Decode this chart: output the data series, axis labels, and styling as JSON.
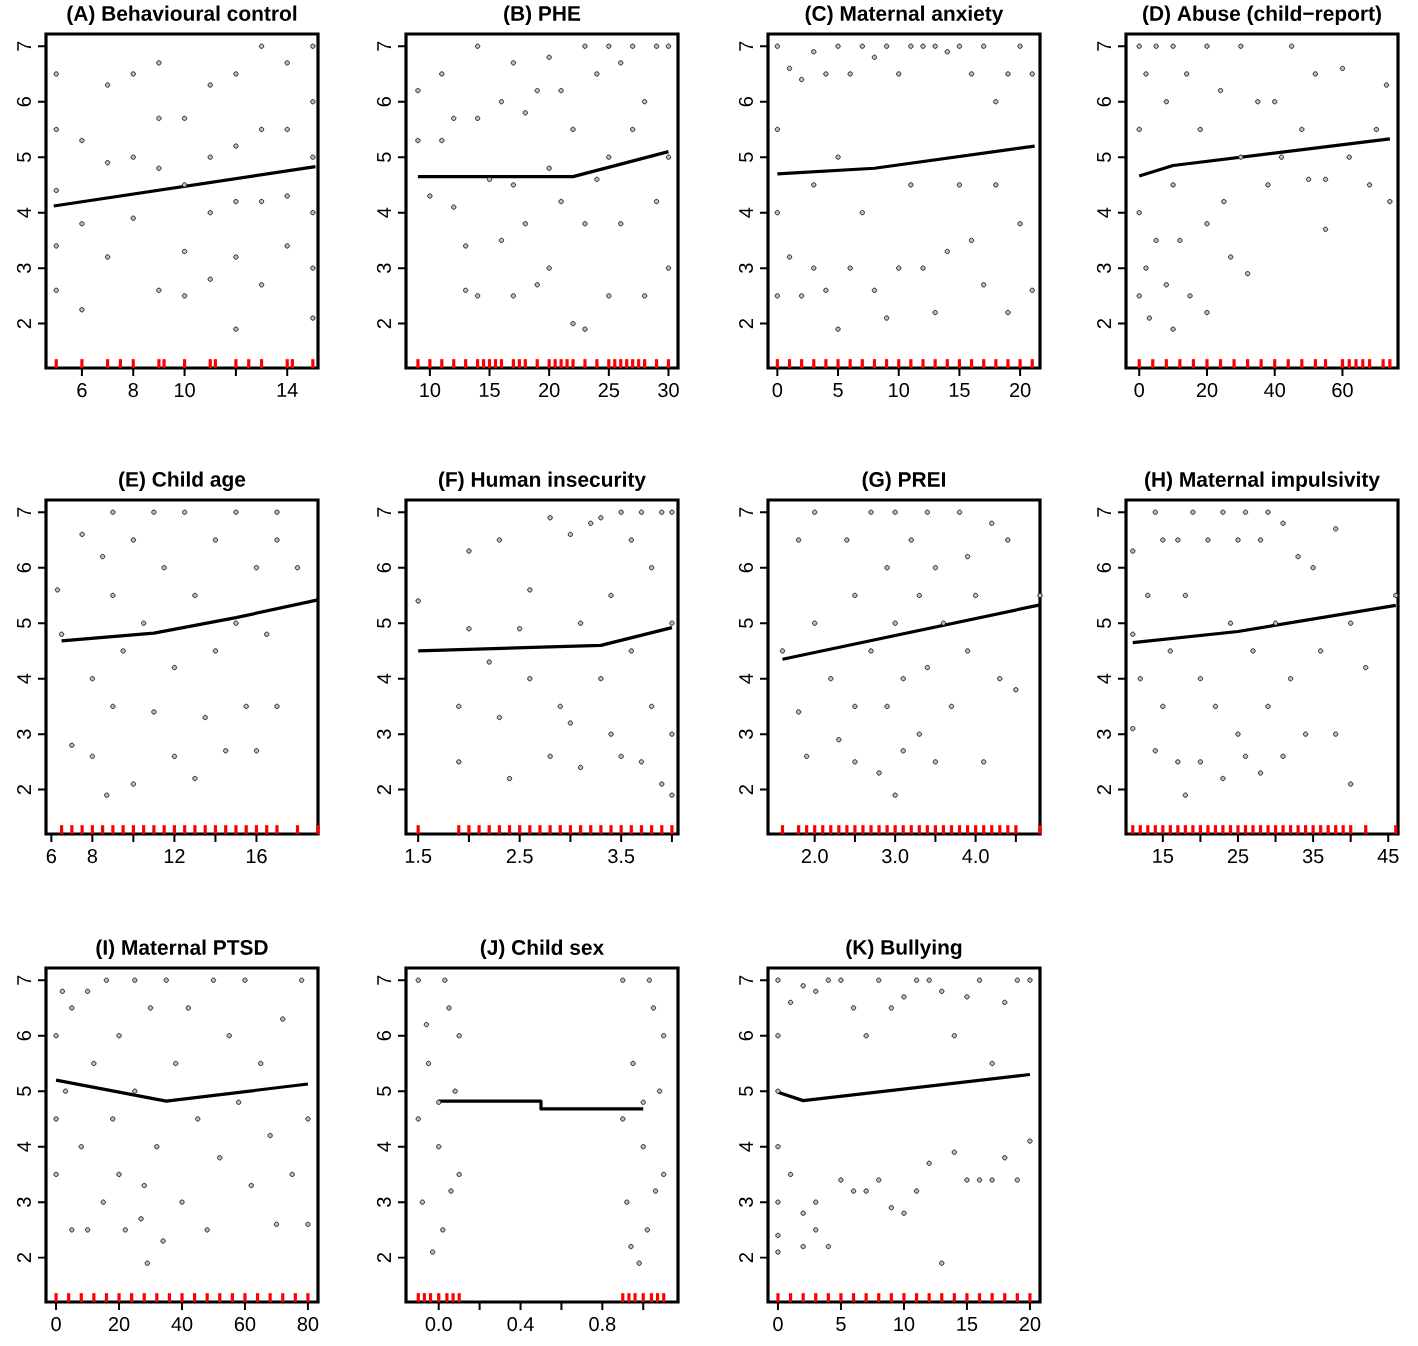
{
  "chart_data": [
    {
      "type": "scatter",
      "title": "(A) Behavioural control",
      "xlim": [
        4.6,
        15.2
      ],
      "xticks": [
        6,
        8,
        10,
        {
          "value": 12,
          "label": null
        },
        14
      ],
      "ylim": [
        1.2,
        7.22
      ],
      "yticks": [
        2,
        3,
        4,
        5,
        6,
        7
      ],
      "series": [
        {
          "type": "scatter",
          "marker": "circle",
          "color": "#bebebe",
          "x": [
            5,
            5,
            5,
            5,
            5,
            6,
            6,
            6,
            7,
            7,
            7,
            8,
            8,
            8,
            9,
            9,
            9,
            9,
            10,
            10,
            10,
            10,
            11,
            11,
            11,
            11,
            12,
            12,
            12,
            12,
            12,
            13,
            13,
            13,
            13,
            14,
            14,
            14,
            14,
            15,
            15,
            15,
            15,
            15,
            15
          ],
          "values": [
            6.5,
            5.5,
            4.4,
            3.4,
            2.6,
            5.3,
            3.8,
            2.25,
            6.3,
            4.9,
            3.2,
            6.5,
            5.0,
            3.9,
            6.7,
            5.7,
            4.8,
            2.6,
            5.7,
            4.5,
            3.3,
            2.5,
            6.3,
            5.0,
            4.0,
            2.8,
            6.5,
            5.2,
            4.2,
            3.2,
            1.9,
            7.0,
            5.5,
            4.2,
            2.7,
            6.7,
            5.5,
            4.3,
            3.4,
            7.0,
            6.0,
            5.0,
            4.0,
            3.0,
            2.1
          ]
        },
        {
          "type": "line",
          "marker": "none",
          "color": "#000000",
          "x": [
            4.9,
            15.1
          ],
          "values": [
            4.12,
            4.83
          ]
        },
        {
          "type": "scatter",
          "color": "#ff0000",
          "x": [
            5,
            6,
            7,
            7.5,
            8,
            9,
            9.2,
            10,
            11,
            11.2,
            12,
            12.5,
            13,
            14,
            14.2,
            15
          ],
          "values": [
            1.28,
            1.28,
            1.28,
            1.28,
            1.28,
            1.28,
            1.28,
            1.28,
            1.28,
            1.28,
            1.28,
            1.28,
            1.28,
            1.28,
            1.28,
            1.28
          ]
        }
      ]
    },
    {
      "type": "scatter",
      "title": "(B) PHE",
      "xlim": [
        8,
        30.8
      ],
      "xticks": [
        10,
        15,
        20,
        25,
        30
      ],
      "ylim": [
        1.2,
        7.22
      ],
      "yticks": [
        2,
        3,
        4,
        5,
        6,
        7
      ],
      "series": [
        {
          "type": "scatter",
          "marker": "circle",
          "color": "#bebebe",
          "x": [
            9,
            9,
            10,
            11,
            11,
            12,
            12,
            13,
            13,
            14,
            14,
            14,
            15,
            16,
            16,
            17,
            17,
            17,
            18,
            18,
            19,
            19,
            20,
            20,
            20,
            21,
            21,
            22,
            22,
            23,
            23,
            23,
            24,
            24,
            25,
            25,
            25,
            26,
            26,
            27,
            27,
            28,
            28,
            29,
            29,
            30,
            30,
            30
          ],
          "values": [
            6.2,
            5.3,
            4.3,
            6.5,
            5.3,
            5.7,
            4.1,
            3.4,
            2.6,
            7.0,
            5.7,
            2.5,
            4.6,
            6.0,
            3.5,
            6.7,
            4.5,
            2.5,
            5.8,
            3.8,
            6.2,
            2.7,
            6.8,
            4.8,
            3.0,
            6.2,
            4.2,
            5.5,
            2.0,
            7.0,
            3.8,
            1.9,
            6.5,
            4.6,
            7.0,
            5.0,
            2.5,
            6.7,
            3.8,
            7.0,
            5.5,
            6.0,
            2.5,
            7.0,
            4.2,
            7.0,
            5.0,
            3.0
          ]
        },
        {
          "type": "line",
          "marker": "none",
          "color": "#000000",
          "x": [
            9,
            22,
            30
          ],
          "values": [
            4.65,
            4.65,
            5.1
          ]
        },
        {
          "type": "scatter",
          "color": "#ff0000",
          "x": [
            9,
            10,
            11,
            12,
            13,
            14,
            14.5,
            15,
            15.5,
            16,
            17,
            17.5,
            18,
            19,
            20,
            20.5,
            21,
            21.5,
            22,
            23,
            24,
            25,
            25.5,
            26,
            26.5,
            27,
            27.5,
            28,
            29,
            30
          ],
          "values": [
            1.28,
            1.28,
            1.28,
            1.28,
            1.28,
            1.28,
            1.28,
            1.28,
            1.28,
            1.28,
            1.28,
            1.28,
            1.28,
            1.28,
            1.28,
            1.28,
            1.28,
            1.28,
            1.28,
            1.28,
            1.28,
            1.28,
            1.28,
            1.28,
            1.28,
            1.28,
            1.28,
            1.28,
            1.28,
            1.28
          ]
        }
      ]
    },
    {
      "type": "scatter",
      "title": "(C) Maternal anxiety",
      "xlim": [
        -0.77,
        21.64
      ],
      "xticks": [
        0,
        5,
        10,
        15,
        20
      ],
      "ylim": [
        1.2,
        7.22
      ],
      "yticks": [
        2,
        3,
        4,
        5,
        6,
        7
      ],
      "series": [
        {
          "type": "scatter",
          "marker": "circle",
          "color": "#bebebe",
          "x": [
            0,
            0,
            0,
            0,
            1,
            1,
            2,
            2,
            3,
            3,
            3,
            4,
            4,
            5,
            5,
            5,
            6,
            6,
            7,
            7,
            8,
            8,
            9,
            9,
            10,
            10,
            11,
            11,
            12,
            12,
            13,
            13,
            14,
            14,
            15,
            15,
            16,
            16,
            17,
            17,
            18,
            18,
            19,
            19,
            20,
            20,
            21,
            21
          ],
          "values": [
            7.0,
            5.5,
            4.0,
            2.5,
            6.6,
            3.2,
            6.4,
            2.5,
            6.9,
            4.5,
            3.0,
            6.5,
            2.6,
            7.0,
            5.0,
            1.9,
            6.5,
            3.0,
            7.0,
            4.0,
            6.8,
            2.6,
            7.0,
            2.1,
            6.5,
            3.0,
            7.0,
            4.5,
            7.0,
            3.0,
            7.0,
            2.2,
            6.9,
            3.3,
            7.0,
            4.5,
            6.5,
            3.5,
            7.0,
            2.7,
            6.0,
            4.5,
            6.5,
            2.2,
            7.0,
            3.8,
            6.5,
            2.6
          ]
        },
        {
          "type": "line",
          "marker": "none",
          "color": "#000000",
          "x": [
            0,
            8,
            21.2
          ],
          "values": [
            4.7,
            4.8,
            5.2
          ]
        },
        {
          "type": "scatter",
          "color": "#ff0000",
          "x": [
            0,
            1,
            2,
            3,
            4,
            5,
            6,
            7,
            8,
            9,
            10,
            11,
            12,
            13,
            14,
            15,
            16,
            17,
            18,
            19,
            20,
            21
          ],
          "values": [
            1.28,
            1.28,
            1.28,
            1.28,
            1.28,
            1.28,
            1.28,
            1.28,
            1.28,
            1.28,
            1.28,
            1.28,
            1.28,
            1.28,
            1.28,
            1.28,
            1.28,
            1.28,
            1.28,
            1.28,
            1.28,
            1.28
          ]
        }
      ]
    },
    {
      "type": "scatter",
      "title": "(D) Abuse (child−report)",
      "xlim": [
        -3.9,
        76.4
      ],
      "xticks": [
        0,
        20,
        40,
        60
      ],
      "ylim": [
        1.2,
        7.22
      ],
      "yticks": [
        2,
        3,
        4,
        5,
        6,
        7
      ],
      "series": [
        {
          "type": "scatter",
          "marker": "circle",
          "color": "#bebebe",
          "x": [
            0,
            0,
            0,
            0,
            2,
            2,
            3,
            5,
            5,
            8,
            8,
            10,
            10,
            10,
            12,
            14,
            15,
            18,
            20,
            20,
            20,
            24,
            25,
            27,
            30,
            30,
            32,
            35,
            38,
            40,
            42,
            45,
            48,
            50,
            52,
            55,
            55,
            60,
            62,
            68,
            70,
            73,
            74
          ],
          "values": [
            7.0,
            5.5,
            4.0,
            2.5,
            6.5,
            3.0,
            2.1,
            7.0,
            3.5,
            6.0,
            2.7,
            7.0,
            4.5,
            1.9,
            3.5,
            6.5,
            2.5,
            5.5,
            7.0,
            3.8,
            2.2,
            6.2,
            4.2,
            3.2,
            7.0,
            5.0,
            2.9,
            6.0,
            4.5,
            6.0,
            5.0,
            7.0,
            5.5,
            4.6,
            6.5,
            3.7,
            4.6,
            6.6,
            5.0,
            4.5,
            5.5,
            6.3,
            4.2
          ]
        },
        {
          "type": "line",
          "marker": "none",
          "color": "#000000",
          "x": [
            0,
            10,
            74
          ],
          "values": [
            4.66,
            4.85,
            5.33
          ]
        },
        {
          "type": "scatter",
          "color": "#ff0000",
          "x": [
            0,
            4,
            8,
            12,
            16,
            20,
            24,
            28,
            32,
            36,
            40,
            44,
            48,
            52,
            55,
            60,
            62,
            64,
            66,
            68,
            72,
            74
          ],
          "values": [
            1.28,
            1.28,
            1.28,
            1.28,
            1.28,
            1.28,
            1.28,
            1.28,
            1.28,
            1.28,
            1.28,
            1.28,
            1.28,
            1.28,
            1.28,
            1.28,
            1.28,
            1.28,
            1.28,
            1.28,
            1.28,
            1.28
          ]
        }
      ]
    },
    {
      "type": "scatter",
      "title": "(E) Child age",
      "xlim": [
        5.74,
        19.0
      ],
      "xticks": [
        6,
        8,
        {
          "value": 10,
          "label": null
        },
        12,
        {
          "value": 14,
          "label": null
        },
        16
      ],
      "ylim": [
        1.2,
        7.22
      ],
      "yticks": [
        2,
        3,
        4,
        5,
        6,
        7
      ],
      "series": [
        {
          "type": "scatter",
          "marker": "circle",
          "color": "#bebebe",
          "x": [
            6.3,
            6.5,
            7,
            7.5,
            8,
            8,
            8.5,
            8.7,
            9,
            9,
            9,
            9.5,
            10,
            10,
            10.5,
            11,
            11,
            11.5,
            12,
            12,
            12.5,
            13,
            13,
            13.5,
            14,
            14,
            14.5,
            15,
            15,
            15.5,
            16,
            16,
            16.5,
            17,
            17,
            17,
            18
          ],
          "values": [
            5.6,
            4.8,
            2.8,
            6.6,
            2.6,
            4.0,
            6.2,
            1.9,
            7.0,
            5.5,
            3.5,
            4.5,
            6.5,
            2.1,
            5.0,
            7.0,
            3.4,
            6.0,
            4.2,
            2.6,
            7.0,
            5.5,
            2.2,
            3.3,
            6.5,
            4.5,
            2.7,
            7.0,
            5.0,
            3.5,
            6.0,
            2.7,
            4.8,
            3.5,
            6.5,
            7.0,
            6.0
          ]
        },
        {
          "type": "line",
          "marker": "none",
          "color": "#000000",
          "x": [
            6.5,
            11,
            15,
            19
          ],
          "values": [
            4.68,
            4.82,
            5.1,
            5.42
          ]
        },
        {
          "type": "scatter",
          "color": "#ff0000",
          "x": [
            6.5,
            7,
            7.5,
            8,
            8.5,
            9,
            9.5,
            10,
            10.5,
            11,
            11.5,
            12,
            12.5,
            13,
            13.5,
            14,
            14.5,
            15,
            15.5,
            16,
            16.5,
            17,
            18,
            19
          ],
          "values": [
            1.28,
            1.28,
            1.28,
            1.28,
            1.28,
            1.28,
            1.28,
            1.28,
            1.28,
            1.28,
            1.28,
            1.28,
            1.28,
            1.28,
            1.28,
            1.28,
            1.28,
            1.28,
            1.28,
            1.28,
            1.28,
            1.28,
            1.28,
            1.28
          ]
        }
      ]
    },
    {
      "type": "scatter",
      "title": "(F) Human insecurity",
      "xlim": [
        1.38,
        4.06
      ],
      "xticks": [
        1.5,
        {
          "value": 2,
          "label": null
        },
        2.5,
        {
          "value": 3,
          "label": null
        },
        3.5,
        {
          "value": 4,
          "label": null
        }
      ],
      "ylim": [
        1.2,
        7.22
      ],
      "yticks": [
        2,
        3,
        4,
        5,
        6,
        7
      ],
      "series": [
        {
          "type": "scatter",
          "marker": "circle",
          "color": "#bebebe",
          "x": [
            1.5,
            1.9,
            1.9,
            2.0,
            2.0,
            2.2,
            2.3,
            2.3,
            2.4,
            2.5,
            2.6,
            2.6,
            2.8,
            2.8,
            2.9,
            3.0,
            3.0,
            3.1,
            3.1,
            3.2,
            3.3,
            3.3,
            3.4,
            3.4,
            3.5,
            3.5,
            3.6,
            3.6,
            3.7,
            3.7,
            3.8,
            3.8,
            3.9,
            3.9,
            4.0,
            4.0,
            4.0,
            4.0
          ],
          "values": [
            5.4,
            3.5,
            2.5,
            6.3,
            4.9,
            4.3,
            6.5,
            3.3,
            2.2,
            4.9,
            5.6,
            4.0,
            6.9,
            2.6,
            3.5,
            6.6,
            3.2,
            5.0,
            2.4,
            6.8,
            4.0,
            6.9,
            3.0,
            5.5,
            7.0,
            2.6,
            4.5,
            6.5,
            2.5,
            7.0,
            3.5,
            6.0,
            7.0,
            2.1,
            7.0,
            5.0,
            3.0,
            1.9
          ]
        },
        {
          "type": "line",
          "marker": "none",
          "color": "#000000",
          "x": [
            1.5,
            3.3,
            4.0
          ],
          "values": [
            4.5,
            4.6,
            4.92
          ]
        },
        {
          "type": "scatter",
          "color": "#ff0000",
          "x": [
            1.5,
            1.9,
            2.0,
            2.1,
            2.2,
            2.3,
            2.4,
            2.5,
            2.6,
            2.7,
            2.8,
            2.9,
            3.0,
            3.1,
            3.2,
            3.3,
            3.4,
            3.5,
            3.6,
            3.7,
            3.8,
            3.9,
            4.0
          ],
          "values": [
            1.28,
            1.28,
            1.28,
            1.28,
            1.28,
            1.28,
            1.28,
            1.28,
            1.28,
            1.28,
            1.28,
            1.28,
            1.28,
            1.28,
            1.28,
            1.28,
            1.28,
            1.28,
            1.28,
            1.28,
            1.28,
            1.28,
            1.28
          ]
        }
      ]
    },
    {
      "type": "scatter",
      "title": "(G) PREI",
      "xlim": [
        1.42,
        4.8
      ],
      "xticks": [
        {
          "value": 2,
          "label": "2.0"
        },
        {
          "value": 2.5,
          "label": null
        },
        {
          "value": 3,
          "label": "3.0"
        },
        {
          "value": 3.5,
          "label": null
        },
        {
          "value": 4,
          "label": "4.0"
        },
        {
          "value": 4.5,
          "label": null
        }
      ],
      "ylim": [
        1.2,
        7.22
      ],
      "yticks": [
        2,
        3,
        4,
        5,
        6,
        7
      ],
      "series": [
        {
          "type": "scatter",
          "marker": "circle",
          "color": "#bebebe",
          "x": [
            1.6,
            1.8,
            1.8,
            1.9,
            2.0,
            2.0,
            2.2,
            2.3,
            2.4,
            2.5,
            2.5,
            2.5,
            2.7,
            2.7,
            2.8,
            2.9,
            2.9,
            3.0,
            3.0,
            3.0,
            3.1,
            3.1,
            3.2,
            3.3,
            3.3,
            3.4,
            3.4,
            3.5,
            3.5,
            3.6,
            3.7,
            3.8,
            3.9,
            3.9,
            4.0,
            4.1,
            4.2,
            4.3,
            4.4,
            4.5,
            4.8
          ],
          "values": [
            4.5,
            6.5,
            3.4,
            2.6,
            7.0,
            5.0,
            4.0,
            2.9,
            6.5,
            5.5,
            3.5,
            2.5,
            7.0,
            4.5,
            2.3,
            6.0,
            3.5,
            7.0,
            5.0,
            1.9,
            4.0,
            2.7,
            6.5,
            5.5,
            3.0,
            7.0,
            4.2,
            6.0,
            2.5,
            5.0,
            3.5,
            7.0,
            4.5,
            6.2,
            5.5,
            2.5,
            6.8,
            4.0,
            6.5,
            3.8,
            5.5
          ]
        },
        {
          "type": "line",
          "marker": "none",
          "color": "#000000",
          "x": [
            1.6,
            4.8
          ],
          "values": [
            4.35,
            5.33
          ]
        },
        {
          "type": "scatter",
          "color": "#ff0000",
          "x": [
            1.6,
            1.8,
            1.9,
            2.0,
            2.1,
            2.2,
            2.3,
            2.4,
            2.5,
            2.6,
            2.7,
            2.8,
            2.9,
            3.0,
            3.1,
            3.2,
            3.3,
            3.4,
            3.5,
            3.6,
            3.7,
            3.8,
            3.9,
            4.0,
            4.1,
            4.2,
            4.3,
            4.4,
            4.5,
            4.8
          ],
          "values": [
            1.28,
            1.28,
            1.28,
            1.28,
            1.28,
            1.28,
            1.28,
            1.28,
            1.28,
            1.28,
            1.28,
            1.28,
            1.28,
            1.28,
            1.28,
            1.28,
            1.28,
            1.28,
            1.28,
            1.28,
            1.28,
            1.28,
            1.28,
            1.28,
            1.28,
            1.28,
            1.28,
            1.28,
            1.28,
            1.28
          ]
        }
      ]
    },
    {
      "type": "scatter",
      "title": "(H) Maternal impulsivity",
      "xlim": [
        10.1,
        46.3
      ],
      "xticks": [
        15,
        {
          "value": 20,
          "label": null
        },
        25,
        {
          "value": 30,
          "label": null
        },
        35,
        {
          "value": 40,
          "label": null
        },
        45
      ],
      "ylim": [
        1.2,
        7.22
      ],
      "yticks": [
        2,
        3,
        4,
        5,
        6,
        7
      ],
      "series": [
        {
          "type": "scatter",
          "marker": "circle",
          "color": "#bebebe",
          "x": [
            11,
            11,
            11,
            12,
            13,
            14,
            14,
            15,
            15,
            16,
            17,
            17,
            18,
            18,
            19,
            20,
            20,
            21,
            22,
            23,
            23,
            24,
            25,
            25,
            26,
            26,
            27,
            28,
            28,
            29,
            29,
            30,
            31,
            31,
            32,
            33,
            34,
            35,
            36,
            38,
            38,
            40,
            40,
            42,
            46
          ],
          "values": [
            6.3,
            4.8,
            3.1,
            4.0,
            5.5,
            7.0,
            2.7,
            6.5,
            3.5,
            4.5,
            6.5,
            2.5,
            5.5,
            1.9,
            7.0,
            4.0,
            2.5,
            6.5,
            3.5,
            7.0,
            2.2,
            5.0,
            6.5,
            3.0,
            7.0,
            2.6,
            4.5,
            6.5,
            2.3,
            7.0,
            3.5,
            5.0,
            6.8,
            2.6,
            4.0,
            6.2,
            3.0,
            6.0,
            4.5,
            6.7,
            3.0,
            5.0,
            2.1,
            4.2,
            5.5
          ]
        },
        {
          "type": "line",
          "marker": "none",
          "color": "#000000",
          "x": [
            11,
            25,
            46
          ],
          "values": [
            4.65,
            4.85,
            5.32
          ]
        },
        {
          "type": "scatter",
          "color": "#ff0000",
          "x": [
            11,
            12,
            13,
            14,
            15,
            16,
            17,
            18,
            19,
            20,
            21,
            22,
            23,
            24,
            25,
            26,
            27,
            28,
            29,
            30,
            31,
            32,
            33,
            34,
            35,
            36,
            37,
            38,
            39,
            40,
            42,
            46
          ],
          "values": [
            1.28,
            1.28,
            1.28,
            1.28,
            1.28,
            1.28,
            1.28,
            1.28,
            1.28,
            1.28,
            1.28,
            1.28,
            1.28,
            1.28,
            1.28,
            1.28,
            1.28,
            1.28,
            1.28,
            1.28,
            1.28,
            1.28,
            1.28,
            1.28,
            1.28,
            1.28,
            1.28,
            1.28,
            1.28,
            1.28,
            1.28,
            1.28
          ]
        }
      ]
    },
    {
      "type": "scatter",
      "title": "(I) Maternal PTSD",
      "xlim": [
        -3.2,
        83.2
      ],
      "xticks": [
        0,
        20,
        40,
        60,
        80
      ],
      "ylim": [
        1.2,
        7.22
      ],
      "yticks": [
        2,
        3,
        4,
        5,
        6,
        7
      ],
      "series": [
        {
          "type": "scatter",
          "marker": "circle",
          "color": "#bebebe",
          "x": [
            0,
            0,
            0,
            2,
            3,
            5,
            5,
            8,
            10,
            10,
            12,
            15,
            16,
            18,
            20,
            20,
            22,
            25,
            25,
            27,
            28,
            29,
            30,
            32,
            34,
            35,
            38,
            40,
            42,
            45,
            48,
            50,
            52,
            55,
            58,
            60,
            62,
            65,
            68,
            70,
            72,
            75,
            78,
            80,
            80
          ],
          "values": [
            6.0,
            4.5,
            3.5,
            6.8,
            5.0,
            2.5,
            6.5,
            4.0,
            2.5,
            6.8,
            5.5,
            3.0,
            7.0,
            4.5,
            6.0,
            3.5,
            2.5,
            7.0,
            5.0,
            2.7,
            3.3,
            1.9,
            6.5,
            4.0,
            2.3,
            7.0,
            5.5,
            3.0,
            6.5,
            4.5,
            2.5,
            7.0,
            3.8,
            6.0,
            4.8,
            7.0,
            3.3,
            5.5,
            4.2,
            2.6,
            6.3,
            3.5,
            7.0,
            4.5,
            2.6
          ]
        },
        {
          "type": "line",
          "marker": "none",
          "color": "#000000",
          "x": [
            0,
            35,
            80
          ],
          "values": [
            5.2,
            4.82,
            5.13
          ]
        },
        {
          "type": "scatter",
          "color": "#ff0000",
          "x": [
            0,
            4,
            8,
            12,
            16,
            20,
            24,
            28,
            32,
            36,
            40,
            44,
            48,
            52,
            56,
            60,
            64,
            68,
            72,
            76,
            80
          ],
          "values": [
            1.28,
            1.28,
            1.28,
            1.28,
            1.28,
            1.28,
            1.28,
            1.28,
            1.28,
            1.28,
            1.28,
            1.28,
            1.28,
            1.28,
            1.28,
            1.28,
            1.28,
            1.28,
            1.28,
            1.28,
            1.28
          ]
        }
      ]
    },
    {
      "type": "scatter",
      "title": "(J) Child sex",
      "xlim": [
        -0.16,
        1.17
      ],
      "xticks": [
        {
          "value": 0,
          "label": "0.0"
        },
        {
          "value": 0.2,
          "label": null
        },
        0.4,
        {
          "value": 0.6,
          "label": null
        },
        0.8,
        {
          "value": 1,
          "label": null
        }
      ],
      "ylim": [
        1.2,
        7.22
      ],
      "yticks": [
        2,
        3,
        4,
        5,
        6,
        7
      ],
      "series": [
        {
          "type": "scatter",
          "marker": "circle",
          "color": "#bebebe",
          "x": [
            -0.1,
            -0.05,
            0,
            0.05,
            0.1,
            -0.08,
            0.02,
            -0.03,
            0.08,
            -0.1,
            0.03,
            0.1,
            -0.06,
            0.06,
            0,
            0.9,
            0.95,
            1.0,
            1.05,
            1.1,
            0.92,
            1.02,
            0.98,
            1.08,
            0.9,
            1.03,
            1.1,
            0.94,
            1.06,
            1.0
          ],
          "values": [
            7.0,
            5.5,
            4.0,
            6.5,
            3.5,
            3.0,
            2.5,
            2.1,
            5.0,
            4.5,
            7.0,
            6.0,
            6.2,
            3.2,
            4.8,
            7.0,
            5.5,
            4.0,
            6.5,
            3.5,
            3.0,
            2.5,
            1.9,
            5.0,
            4.5,
            7.0,
            6.0,
            2.2,
            3.2,
            4.8
          ]
        },
        {
          "type": "line",
          "marker": "none",
          "color": "#000000",
          "x": [
            0,
            0.5,
            0.5,
            1
          ],
          "values": [
            4.82,
            4.82,
            4.68,
            4.68
          ]
        },
        {
          "type": "scatter",
          "color": "#ff0000",
          "x": [
            -0.1,
            -0.07,
            -0.04,
            0,
            0.04,
            0.07,
            0.1,
            0.9,
            0.93,
            0.96,
            1.0,
            1.04,
            1.07,
            1.1
          ],
          "values": [
            1.28,
            1.28,
            1.28,
            1.28,
            1.28,
            1.28,
            1.28,
            1.28,
            1.28,
            1.28,
            1.28,
            1.28,
            1.28,
            1.28
          ]
        }
      ]
    },
    {
      "type": "scatter",
      "title": "(K) Bullying",
      "xlim": [
        -0.79,
        20.8
      ],
      "xticks": [
        0,
        5,
        10,
        15,
        20
      ],
      "ylim": [
        1.2,
        7.22
      ],
      "yticks": [
        2,
        3,
        4,
        5,
        6,
        7
      ],
      "series": [
        {
          "type": "scatter",
          "marker": "circle",
          "color": "#bebebe",
          "x": [
            0,
            0,
            0,
            0,
            0,
            0,
            0,
            1,
            1,
            2,
            2,
            2,
            3,
            3,
            3,
            4,
            4,
            5,
            5,
            6,
            6,
            7,
            7,
            8,
            8,
            9,
            9,
            10,
            10,
            11,
            11,
            12,
            12,
            13,
            13,
            14,
            14,
            15,
            15,
            16,
            16,
            17,
            17,
            18,
            18,
            19,
            19,
            20,
            20
          ],
          "values": [
            7.0,
            6.0,
            5.0,
            4.0,
            3.0,
            2.4,
            2.1,
            6.6,
            3.5,
            6.9,
            2.8,
            2.2,
            6.8,
            3.0,
            2.5,
            7.0,
            2.2,
            7.0,
            3.4,
            6.5,
            3.2,
            6.0,
            3.2,
            7.0,
            3.4,
            6.5,
            2.9,
            6.7,
            2.8,
            7.0,
            3.2,
            7.0,
            3.7,
            6.8,
            1.9,
            6.0,
            3.9,
            6.7,
            3.4,
            7.0,
            3.4,
            5.5,
            3.4,
            6.6,
            3.8,
            7.0,
            3.4,
            7.0,
            4.1
          ]
        },
        {
          "type": "line",
          "marker": "none",
          "color": "#000000",
          "x": [
            0,
            2,
            20
          ],
          "values": [
            4.98,
            4.83,
            5.3
          ]
        },
        {
          "type": "scatter",
          "color": "#ff0000",
          "x": [
            0,
            1,
            2,
            3,
            4,
            5,
            6,
            7,
            8,
            9,
            10,
            11,
            12,
            13,
            14,
            15,
            16,
            17,
            18,
            19,
            20
          ],
          "values": [
            1.28,
            1.28,
            1.28,
            1.28,
            1.28,
            1.28,
            1.28,
            1.28,
            1.28,
            1.28,
            1.28,
            1.28,
            1.28,
            1.28,
            1.28,
            1.28,
            1.28,
            1.28,
            1.28,
            1.28,
            1.28
          ]
        }
      ]
    }
  ]
}
